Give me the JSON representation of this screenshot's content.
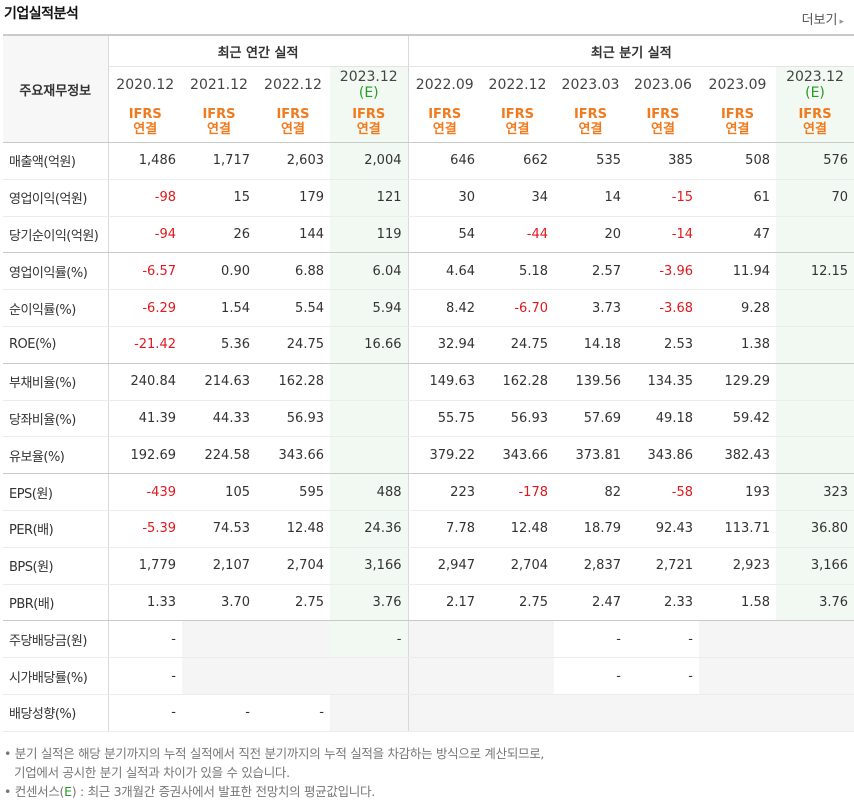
{
  "header": {
    "title": "기업실적분석",
    "more_label": "더보기",
    "more_arrow": "▸"
  },
  "table": {
    "row_header_label": "주요재무정보",
    "group_annual": "최근 연간 실적",
    "group_quarter": "최근 분기 실적",
    "periods": [
      {
        "date": "2020.12",
        "est": "",
        "ifrs": "IFRS",
        "basis": "연결"
      },
      {
        "date": "2021.12",
        "est": "",
        "ifrs": "IFRS",
        "basis": "연결"
      },
      {
        "date": "2022.12",
        "est": "",
        "ifrs": "IFRS",
        "basis": "연결"
      },
      {
        "date": "2023.12",
        "est": "(E)",
        "ifrs": "IFRS",
        "basis": "연결"
      },
      {
        "date": "2022.09",
        "est": "",
        "ifrs": "IFRS",
        "basis": "연결"
      },
      {
        "date": "2022.12",
        "est": "",
        "ifrs": "IFRS",
        "basis": "연결"
      },
      {
        "date": "2023.03",
        "est": "",
        "ifrs": "IFRS",
        "basis": "연결"
      },
      {
        "date": "2023.06",
        "est": "",
        "ifrs": "IFRS",
        "basis": "연결"
      },
      {
        "date": "2023.09",
        "est": "",
        "ifrs": "IFRS",
        "basis": "연결"
      },
      {
        "date": "2023.12",
        "est": "(E)",
        "ifrs": "IFRS",
        "basis": "연결"
      }
    ],
    "rows": [
      {
        "label": "매출액(억원)",
        "values": [
          "1,486",
          "1,717",
          "2,603",
          "2,004",
          "646",
          "662",
          "535",
          "385",
          "508",
          "576"
        ]
      },
      {
        "label": "영업이익(억원)",
        "values": [
          "-98",
          "15",
          "179",
          "121",
          "30",
          "34",
          "14",
          "-15",
          "61",
          "70"
        ]
      },
      {
        "label": "당기순이익(억원)",
        "values": [
          "-94",
          "26",
          "144",
          "119",
          "54",
          "-44",
          "20",
          "-14",
          "47",
          ""
        ]
      },
      {
        "label": "영업이익률(%)",
        "values": [
          "-6.57",
          "0.90",
          "6.88",
          "6.04",
          "4.64",
          "5.18",
          "2.57",
          "-3.96",
          "11.94",
          "12.15"
        ]
      },
      {
        "label": "순이익률(%)",
        "values": [
          "-6.29",
          "1.54",
          "5.54",
          "5.94",
          "8.42",
          "-6.70",
          "3.73",
          "-3.68",
          "9.28",
          ""
        ]
      },
      {
        "label": "ROE(%)",
        "values": [
          "-21.42",
          "5.36",
          "24.75",
          "16.66",
          "32.94",
          "24.75",
          "14.18",
          "2.53",
          "1.38",
          ""
        ]
      },
      {
        "label": "부채비율(%)",
        "values": [
          "240.84",
          "214.63",
          "162.28",
          "",
          "149.63",
          "162.28",
          "139.56",
          "134.35",
          "129.29",
          ""
        ]
      },
      {
        "label": "당좌비율(%)",
        "values": [
          "41.39",
          "44.33",
          "56.93",
          "",
          "55.75",
          "56.93",
          "57.69",
          "49.18",
          "59.42",
          ""
        ]
      },
      {
        "label": "유보율(%)",
        "values": [
          "192.69",
          "224.58",
          "343.66",
          "",
          "379.22",
          "343.66",
          "373.81",
          "343.86",
          "382.43",
          ""
        ]
      },
      {
        "label": "EPS(원)",
        "values": [
          "-439",
          "105",
          "595",
          "488",
          "223",
          "-178",
          "82",
          "-58",
          "193",
          "323"
        ]
      },
      {
        "label": "PER(배)",
        "values": [
          "-5.39",
          "74.53",
          "12.48",
          "24.36",
          "7.78",
          "12.48",
          "18.79",
          "92.43",
          "113.71",
          "36.80"
        ]
      },
      {
        "label": "BPS(원)",
        "values": [
          "1,779",
          "2,107",
          "2,704",
          "3,166",
          "2,947",
          "2,704",
          "2,837",
          "2,721",
          "2,923",
          "3,166"
        ]
      },
      {
        "label": "PBR(배)",
        "values": [
          "1.33",
          "3.70",
          "2.75",
          "3.76",
          "2.17",
          "2.75",
          "2.47",
          "2.33",
          "1.58",
          "3.76"
        ]
      },
      {
        "label": "주당배당금(원)",
        "values": [
          "-",
          "",
          "",
          "-",
          "",
          "",
          "-",
          "-",
          "",
          ""
        ]
      },
      {
        "label": "시가배당률(%)",
        "values": [
          "-",
          "",
          "",
          "",
          "",
          "",
          "-",
          "-",
          "",
          ""
        ]
      },
      {
        "label": "배당성향(%)",
        "values": [
          "-",
          "-",
          "-",
          "",
          "",
          "",
          "",
          "",
          "",
          ""
        ]
      }
    ]
  },
  "notes": {
    "line1": "• 분기 실적은 해당 분기까지의 누적 실적에서 직전 분기까지의 누적 실적을 차감하는 방식으로 계산되므로,",
    "line2": "기업에서 공시한 분기 실적과 차이가 있을 수 있습니다.",
    "line3_prefix": "• 컨센서스(",
    "line3_mark": "E",
    "line3_suffix": ") : 최근 3개월간 증권사에서 발표한 전망치의 평균값입니다."
  }
}
